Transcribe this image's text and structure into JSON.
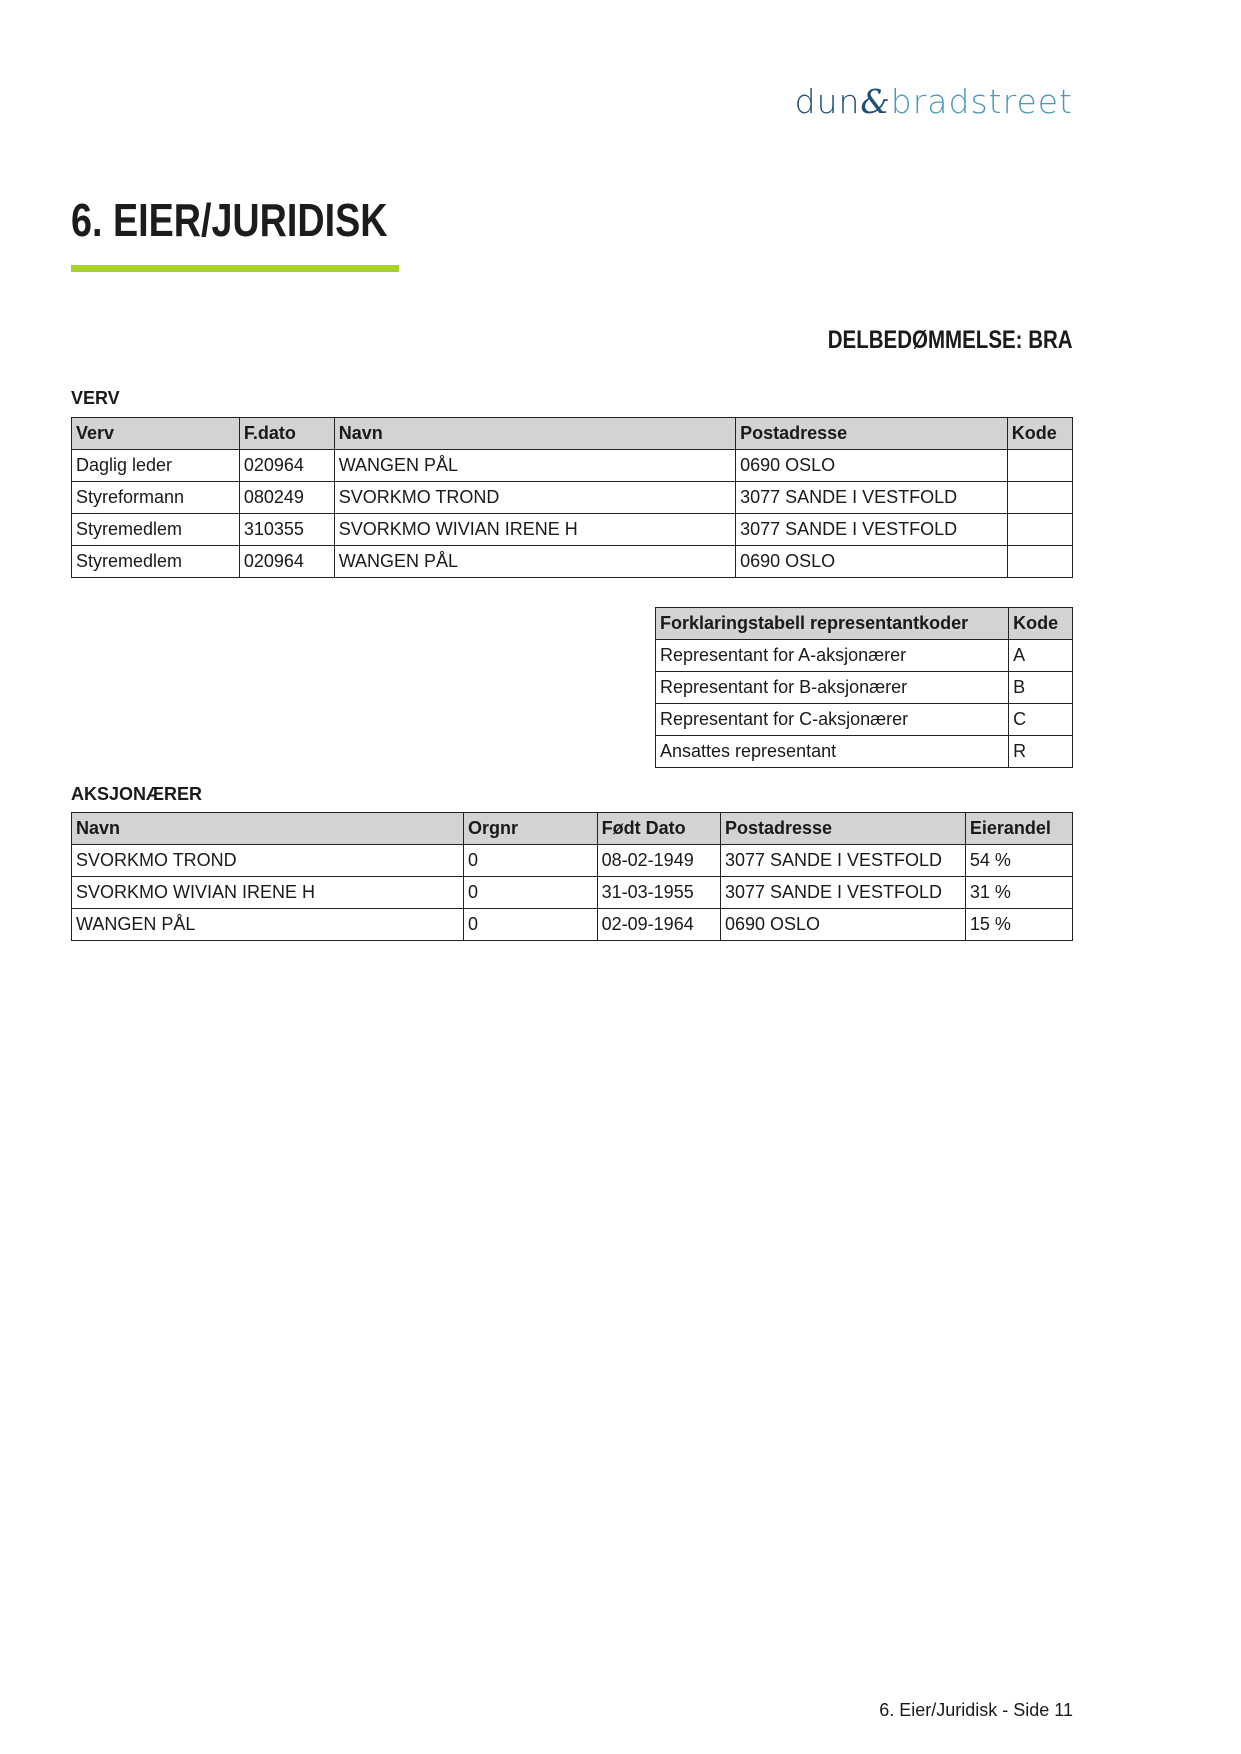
{
  "logo": {
    "part1": "dun",
    "amp": "&",
    "part2": "bradstreet"
  },
  "title": "6. EIER/JURIDISK",
  "rating": "DELBEDØMMELSE: BRA",
  "verv": {
    "label": "VERV",
    "headers": [
      "Verv",
      "F.dato",
      "Navn",
      "Postadresse",
      "Kode"
    ],
    "rows": [
      [
        "Daglig leder",
        "020964",
        "WANGEN PÅL",
        "0690 OSLO",
        ""
      ],
      [
        "Styreformann",
        "080249",
        "SVORKMO TROND",
        "3077 SANDE I VESTFOLD",
        ""
      ],
      [
        "Styremedlem",
        "310355",
        "SVORKMO WIVIAN IRENE H",
        "3077 SANDE I VESTFOLD",
        ""
      ],
      [
        "Styremedlem",
        "020964",
        "WANGEN PÅL",
        "0690 OSLO",
        ""
      ]
    ]
  },
  "koder": {
    "headers": [
      "Forklaringstabell representantkoder",
      "Kode"
    ],
    "rows": [
      [
        "Representant for A-aksjonærer",
        "A"
      ],
      [
        "Representant for B-aksjonærer",
        "B"
      ],
      [
        "Representant for C-aksjonærer",
        "C"
      ],
      [
        "Ansattes representant",
        "R"
      ]
    ]
  },
  "aksjonaerer": {
    "label": "AKSJONÆRER",
    "headers": [
      "Navn",
      "Orgnr",
      "Født Dato",
      "Postadresse",
      "Eierandel"
    ],
    "rows": [
      [
        "SVORKMO TROND",
        "0",
        "08-02-1949",
        "3077 SANDE I VESTFOLD",
        "54 %"
      ],
      [
        "SVORKMO WIVIAN IRENE H",
        "0",
        "31-03-1955",
        "3077 SANDE I VESTFOLD",
        "31 %"
      ],
      [
        "WANGEN PÅL",
        "0",
        "02-09-1964",
        "0690 OSLO",
        "15 %"
      ]
    ]
  },
  "footer": "6. Eier/Juridisk - Side 11",
  "colors": {
    "accent": "#a6d22a",
    "header_bg": "#d3d3d3",
    "logo_dark": "#1f4e79",
    "logo_light": "#4a9ab8"
  }
}
